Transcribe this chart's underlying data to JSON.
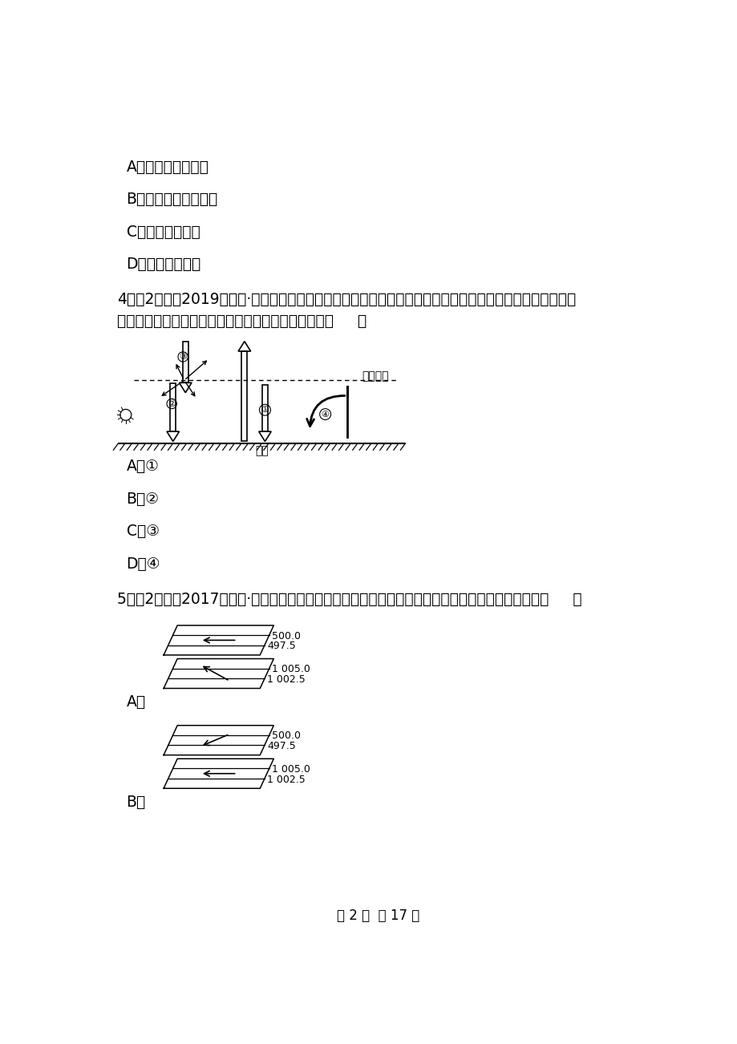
{
  "bg_color": "#ffffff",
  "page_text": "第 2 页  共 17 页",
  "options_q3": [
    "A．以平流运动为主",
    "B．天气现象复杂多变",
    "C．适合高空飞行",
    "D．有若干电离层"
  ],
  "q4_line1": "4．（2分）（2019高一上·吉林期中）冬季，农民人造烟幕防止农作物受冻。下面有关太阳辐射和地面辐射、",
  "q4_line2": "大气逆辐射关系的示意图中，能表示其原理的箭头是（     ）",
  "q4_options": [
    "A．①",
    "B．②",
    "C．③",
    "D．④"
  ],
  "q5_line1": "5．（2分）（2017高一上·台山月考）下图中能正确反映北半球近地面和高空等压线与风向关系的是（     ）",
  "label_A": "A．",
  "label_B": "B．",
  "label_daqijie": "大气上界",
  "label_dimian": "地面",
  "para_A_top_labels": [
    "500.0",
    "497.5"
  ],
  "para_A_bot_labels": [
    "1 005.0",
    "1 002.5"
  ],
  "para_B_top_labels": [
    "500.0",
    "497.5"
  ],
  "para_B_bot_labels": [
    "1 005.0",
    "1 002.5"
  ]
}
